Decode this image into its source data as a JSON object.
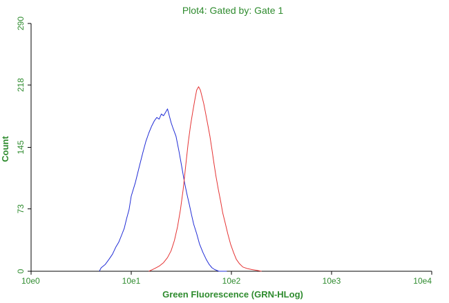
{
  "colors": {
    "text": "#2E8B2E",
    "axis": "#000000",
    "series_blue": "#1F2BD6",
    "series_red": "#E53232"
  },
  "chart_data": {
    "type": "line",
    "title": "Plot4:  Gated by: Gate 1",
    "xlabel": "Green Fluorescence (GRN-HLog)",
    "ylabel": "Count",
    "x_scale": "log",
    "xlim": [
      1,
      10000
    ],
    "ylim": [
      0,
      290
    ],
    "x_ticks": [
      {
        "value": 1,
        "label": "10e0"
      },
      {
        "value": 10,
        "label": "10e1"
      },
      {
        "value": 100,
        "label": "10e2"
      },
      {
        "value": 1000,
        "label": "10e3"
      },
      {
        "value": 10000,
        "label": "10e4"
      }
    ],
    "y_ticks": [
      {
        "value": 0,
        "label": "0"
      },
      {
        "value": 73,
        "label": "73"
      },
      {
        "value": 145,
        "label": "145"
      },
      {
        "value": 218,
        "label": "218"
      },
      {
        "value": 290,
        "label": "290"
      }
    ],
    "grid": false,
    "legend": "none",
    "series": [
      {
        "color": "#1F2BD6",
        "points": [
          [
            4.8,
            0
          ],
          [
            5.0,
            4
          ],
          [
            5.5,
            8
          ],
          [
            6.0,
            14
          ],
          [
            6.5,
            20
          ],
          [
            7.0,
            28
          ],
          [
            7.5,
            34
          ],
          [
            8.0,
            42
          ],
          [
            8.5,
            50
          ],
          [
            9.0,
            62
          ],
          [
            9.5,
            72
          ],
          [
            10.0,
            88
          ],
          [
            11.0,
            104
          ],
          [
            12.0,
            122
          ],
          [
            13.0,
            138
          ],
          [
            14.0,
            152
          ],
          [
            15.0,
            162
          ],
          [
            16.0,
            170
          ],
          [
            17.0,
            176
          ],
          [
            18.0,
            180
          ],
          [
            19.0,
            178
          ],
          [
            20.0,
            184
          ],
          [
            21.0,
            182
          ],
          [
            22.0,
            186
          ],
          [
            23.0,
            190
          ],
          [
            24.0,
            182
          ],
          [
            25.0,
            174
          ],
          [
            26.0,
            168
          ],
          [
            28.0,
            158
          ],
          [
            30.0,
            140
          ],
          [
            32.0,
            122
          ],
          [
            34.0,
            104
          ],
          [
            36.0,
            90
          ],
          [
            38.0,
            78
          ],
          [
            40.0,
            66
          ],
          [
            42.0,
            55
          ],
          [
            45.0,
            44
          ],
          [
            48.0,
            32
          ],
          [
            52.0,
            22
          ],
          [
            56.0,
            14
          ],
          [
            60.0,
            8
          ],
          [
            64.0,
            4
          ],
          [
            68.0,
            2
          ],
          [
            75.0,
            0
          ],
          [
            90.0,
            0
          ]
        ]
      },
      {
        "color": "#E53232",
        "points": [
          [
            15.0,
            0
          ],
          [
            17.0,
            3
          ],
          [
            19.0,
            6
          ],
          [
            21.0,
            10
          ],
          [
            23.0,
            16
          ],
          [
            25.0,
            24
          ],
          [
            27.0,
            36
          ],
          [
            29.0,
            52
          ],
          [
            31.0,
            72
          ],
          [
            33.0,
            96
          ],
          [
            35.0,
            124
          ],
          [
            37.0,
            150
          ],
          [
            39.0,
            170
          ],
          [
            41.0,
            186
          ],
          [
            43.0,
            200
          ],
          [
            45.0,
            212
          ],
          [
            47.0,
            216
          ],
          [
            49.0,
            212
          ],
          [
            51.0,
            204
          ],
          [
            53.0,
            196
          ],
          [
            55.0,
            186
          ],
          [
            58.0,
            172
          ],
          [
            61.0,
            158
          ],
          [
            64.0,
            142
          ],
          [
            67.0,
            126
          ],
          [
            70.0,
            112
          ],
          [
            74.0,
            96
          ],
          [
            78.0,
            82
          ],
          [
            82.0,
            68
          ],
          [
            87.0,
            56
          ],
          [
            92.0,
            44
          ],
          [
            98.0,
            32
          ],
          [
            105.0,
            22
          ],
          [
            112.0,
            14
          ],
          [
            120.0,
            9
          ],
          [
            130.0,
            5
          ],
          [
            145.0,
            3
          ],
          [
            160.0,
            2
          ],
          [
            180.0,
            1
          ],
          [
            200.0,
            0
          ]
        ]
      }
    ]
  }
}
